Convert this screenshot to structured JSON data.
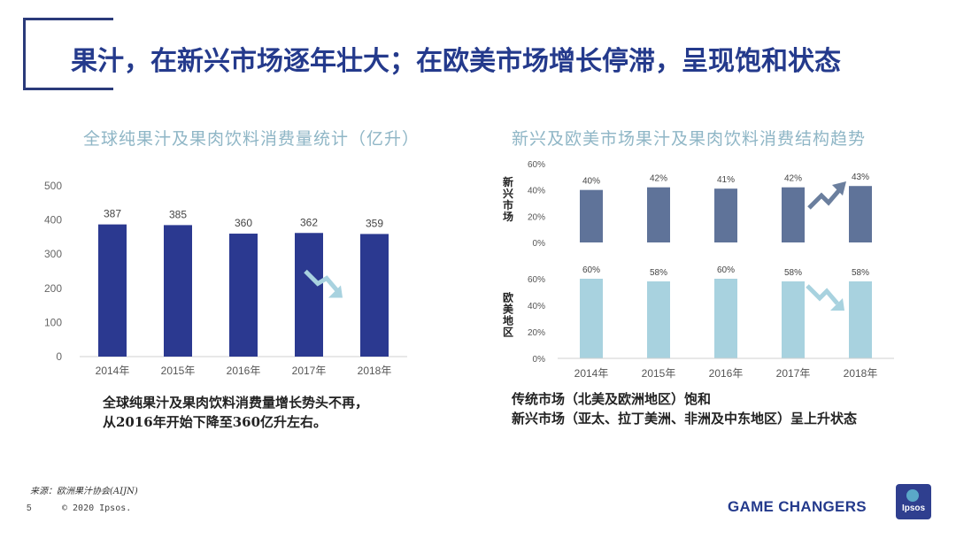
{
  "page": {
    "title": "果汁，在新兴市场逐年壮大；在欧美市场增长停滞，呈现饱和状态",
    "source": "来源：欧洲果汁协会(AIJN)",
    "page_number": "5",
    "copyright": "© 2020 Ipsos.",
    "tagline": "GAME CHANGERS",
    "logo_text": "Ipsos"
  },
  "left_chart": {
    "title": "全球纯果汁及果肉饮料消费量统计（亿升）",
    "caption_lines": [
      "全球纯果汁及果肉饮料消费量增长势头不再，",
      "从2016年开始下降至360亿升左右。"
    ],
    "bar_color": "#2b3990"
  },
  "right_chart": {
    "title": "新兴及欧美市场果汁及果肉饮料消费结构趋势",
    "caption_lines": [
      "传统市场（北美及欧洲地区）饱和",
      "新兴市场（亚太、拉丁美洲、非洲及中东地区）呈上升状态"
    ],
    "emerging_label": "新兴市场",
    "western_label": "欧美地区",
    "emerging_color": "#5f7399",
    "western_color": "#a8d2df"
  },
  "chart_data": [
    {
      "type": "bar",
      "title": "全球纯果汁及果肉饮料消费量统计（亿升）",
      "categories": [
        "2014年",
        "2015年",
        "2016年",
        "2017年",
        "2018年"
      ],
      "values": [
        387,
        385,
        360,
        362,
        359
      ],
      "ylim": [
        0,
        500
      ],
      "yticks": [
        0,
        100,
        200,
        300,
        400,
        500
      ],
      "grid": false,
      "annotation": "downward trend arrow between 2017年 and 2018年"
    },
    {
      "type": "bar",
      "title": "新兴及欧美市场果汁及果肉饮料消费结构趋势",
      "categories": [
        "2014年",
        "2015年",
        "2016年",
        "2017年",
        "2018年"
      ],
      "series": [
        {
          "name": "新兴市场",
          "values": [
            40,
            42,
            41,
            42,
            43
          ],
          "labels": [
            "40%",
            "42%",
            "41%",
            "42%",
            "43%"
          ]
        },
        {
          "name": "欧美地区",
          "values": [
            60,
            58,
            60,
            58,
            58
          ],
          "labels": [
            "60%",
            "58%",
            "60%",
            "58%",
            "58%"
          ]
        }
      ],
      "ylim": [
        0,
        60
      ],
      "yticks": [
        "0%",
        "20%",
        "40%",
        "60%"
      ],
      "annotations": [
        "upward arrow on 新兴市场 2017年→2018年",
        "downward arrow on 欧美地区 2017年→2018年"
      ]
    }
  ]
}
